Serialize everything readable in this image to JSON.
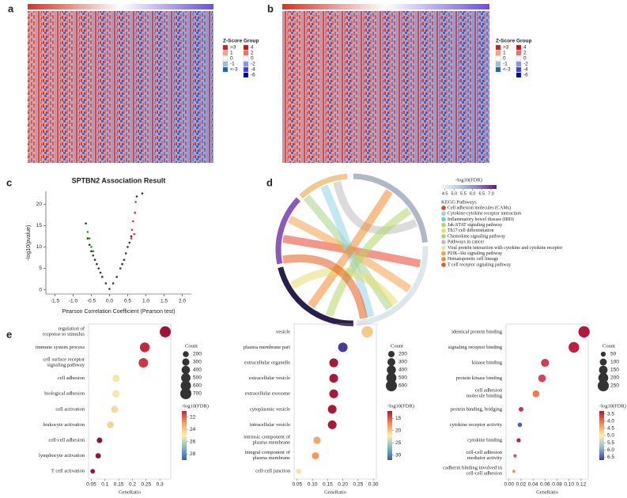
{
  "panel_labels": [
    "a",
    "b",
    "c",
    "d",
    "e"
  ],
  "chart_data": [
    {
      "type": "heatmap",
      "legends": [
        {
          "title": "Z-Score",
          "ticks": [
            {
              "value": 3,
              "label": ">3"
            },
            1,
            0,
            -1,
            {
              "value": -3,
              "label": "<-3"
            }
          ],
          "colors": [
            "#d7191c",
            "#f4a582",
            "#ffffff",
            "#92c5de",
            "#2166ac"
          ]
        },
        {
          "title": "Group",
          "ticks": [
            4,
            2,
            0,
            -2,
            -4,
            -6
          ],
          "colors": [
            "#d01010",
            "#f07070",
            "#ffffff",
            "#9090f0",
            "#4040e0",
            "#0000b0"
          ]
        }
      ]
    },
    {
      "type": "heatmap",
      "legends": [
        {
          "title": "Z-Score",
          "ticks": [
            {
              "value": 3,
              "label": ">3"
            },
            1,
            0,
            -1,
            {
              "value": -3,
              "label": "<-3"
            }
          ],
          "colors": [
            "#d7191c",
            "#f4a582",
            "#ffffff",
            "#92c5de",
            "#2166ac"
          ]
        },
        {
          "title": "Group",
          "ticks": [
            4,
            2,
            0,
            -2,
            -4,
            -6
          ],
          "colors": [
            "#d01010",
            "#f07070",
            "#ffffff",
            "#9090f0",
            "#4040e0",
            "#0000b0"
          ]
        }
      ]
    },
    {
      "type": "scatter",
      "title": "SPTBN2 Association Result",
      "xlabel": "Pearson Correlation Coefficient (Pearson test)",
      "ylabel": "-log10(pvalue)",
      "xlim": [
        -1.75,
        2.25
      ],
      "ylim": [
        -1,
        23
      ],
      "xticks": [
        {
          "value": -1.5,
          "label": "-1.5"
        },
        {
          "value": -1,
          "label": "-1.0"
        },
        {
          "value": -0.5,
          "label": "-0.5"
        },
        {
          "value": 0,
          "label": "0.0"
        },
        {
          "value": 0.5,
          "label": "0.5"
        },
        {
          "value": 1,
          "label": "1.0"
        },
        {
          "value": 1.5,
          "label": "1.5"
        },
        {
          "value": 2,
          "label": "2.0"
        }
      ],
      "yticks": [
        0,
        5,
        10,
        15,
        20
      ],
      "series": [
        {
          "color": "#333333",
          "x": [
            -0.6,
            -0.55,
            -0.5,
            -0.45,
            -0.4,
            -0.35,
            -0.3,
            -0.25,
            -0.2,
            -0.1,
            0,
            0.1,
            0.2,
            0.3,
            0.35,
            0.4,
            0.45,
            0.5,
            0.55,
            0.6,
            0.9,
            0.75,
            -0.65
          ],
          "y": [
            12,
            10.5,
            9,
            8,
            7,
            6,
            5,
            4,
            3,
            1.5,
            0.2,
            1.5,
            3,
            5,
            6,
            7,
            8.5,
            10,
            11,
            12.5,
            22.5,
            21.8,
            15.5
          ]
        },
        {
          "color": "#e03030",
          "x": [
            0.62,
            0.65,
            0.7,
            0.72,
            0.68,
            0.6
          ],
          "y": [
            14,
            16,
            18,
            20.5,
            13,
            12
          ]
        },
        {
          "color": "#2a9a2a",
          "x": [
            -0.55,
            -0.6,
            -0.5,
            -0.45
          ],
          "y": [
            12,
            13.5,
            10,
            9
          ]
        }
      ]
    },
    {
      "type": "chord",
      "colorbar": {
        "title": "-log10(FDR)",
        "ticks": [
          4.5,
          {
            "value": 5,
            "label": "5.0"
          },
          5.5,
          {
            "value": 6,
            "label": "6.0"
          },
          6.5,
          {
            "value": 7,
            "label": "7.0"
          }
        ],
        "lim": [
          4.3,
          7.3
        ],
        "colors": [
          "#f4f6f8",
          "#b8c8dc",
          "#8a7fb8",
          "#5a1f7a"
        ]
      },
      "legend_title": "KEGG Pathways",
      "categories": [
        "Cell adhesion molecules (CAMs)",
        "Cytokine-cytokine receptor interaction",
        "Inflammatory bowel disease (IBD)",
        "Jak-STAT signaling pathway",
        "Th17 cell differentiation",
        "Chemokine signaling pathway",
        "Pathways in cancer",
        "Viral protein interaction with cytokine and cytokine receptor",
        "PI3K-Akt signaling pathway",
        "Hematopoietic cell lineage",
        "T cell receptor signaling pathway"
      ],
      "colors": [
        "#e8412a",
        "#92d5e6",
        "#7fc8c8",
        "#b5d66b",
        "#e6dc6f",
        "#a9d18e",
        "#bdbdbd",
        "#f3e08a",
        "#f5a04a",
        "#f28a2e",
        "#e35d1c"
      ]
    },
    {
      "type": "dotplot",
      "xlabel": "GeneRatio",
      "xlim": [
        0.04,
        0.34
      ],
      "xticks": [
        0.05,
        0.1,
        0.15,
        0.2,
        0.25,
        0.3
      ],
      "categories": [
        "regulation of response to stimulus",
        "immune system process",
        "cell surface receptor signaling pathway",
        "cell adhesion",
        "biological adhesion",
        "cell activation",
        "leukocyte activation",
        "cell-cell adhesion",
        "lymphocyte activation",
        "T cell activation"
      ],
      "values": [
        0.32,
        0.245,
        0.24,
        0.14,
        0.14,
        0.135,
        0.12,
        0.08,
        0.075,
        0.055
      ],
      "sizes": [
        700,
        540,
        520,
        300,
        300,
        290,
        260,
        175,
        165,
        120
      ],
      "colors": [
        "#9c1538",
        "#c0283e",
        "#cc3448",
        "#f8e6a8",
        "#f8e6a8",
        "#f6dc9c",
        "#f4d494",
        "#8a1040",
        "#8e1444",
        "#901848"
      ],
      "size_legend": {
        "title": "Count",
        "values": [
          200,
          300,
          400,
          500,
          600,
          700
        ]
      },
      "colorbar": {
        "title": "-log10(FDR)",
        "ticks": [
          22,
          24,
          26,
          28
        ],
        "lim": [
          21,
          29
        ],
        "colors": [
          "#c0283e",
          "#f4a460",
          "#fdf1a8",
          "#7fb8d0",
          "#3b5fa8"
        ]
      }
    },
    {
      "type": "dotplot",
      "xlabel": "GeneRatio",
      "xlim": [
        0.04,
        0.31
      ],
      "xticks": [
        {
          "value": 0.05,
          "label": "0.05"
        },
        {
          "value": 0.1,
          "label": "0.10"
        },
        {
          "value": 0.15,
          "label": "0.15"
        },
        {
          "value": 0.2,
          "label": "0.20"
        },
        {
          "value": 0.25,
          "label": "0.25"
        },
        {
          "value": 0.3,
          "label": "0.30"
        }
      ],
      "categories": [
        "vesicle",
        "plasma membrane part",
        "extracellular organelle",
        "extracellular vesicle",
        "extracellular exosome",
        "cytoplasmic vesicle",
        "intracellular vesicle",
        "intrinsic component of plasma membrane",
        "integral component of plasma membrane",
        "cell-cell junction"
      ],
      "values": [
        0.28,
        0.2,
        0.17,
        0.17,
        0.17,
        0.165,
        0.165,
        0.115,
        0.11,
        0.055
      ],
      "sizes": [
        620,
        440,
        380,
        380,
        380,
        370,
        370,
        260,
        250,
        130
      ],
      "colors": [
        "#f5c98a",
        "#4a3a9a",
        "#a8183c",
        "#a8183c",
        "#a8183c",
        "#a8183c",
        "#a8183c",
        "#f3a86a",
        "#f09a5a",
        "#f7e2a6"
      ],
      "size_legend": {
        "title": "Count",
        "values": [
          200,
          300,
          400,
          500,
          600
        ]
      },
      "colorbar": {
        "title": "-log10(FDR)",
        "ticks": [
          15,
          20,
          25,
          30
        ],
        "lim": [
          12,
          32
        ],
        "colors": [
          "#a8183c",
          "#f08a50",
          "#fdf1a8",
          "#7fb8d0",
          "#3b5fa8"
        ]
      }
    },
    {
      "type": "dotplot",
      "xlabel": "GeneRatio",
      "xlim": [
        -0.005,
        0.132
      ],
      "xticks": [
        {
          "value": 0,
          "label": "0.00"
        },
        {
          "value": 0.02,
          "label": "0.02"
        },
        {
          "value": 0.04,
          "label": "0.04"
        },
        {
          "value": 0.06,
          "label": "0.06"
        },
        {
          "value": 0.08,
          "label": "0.08"
        },
        {
          "value": 0.1,
          "label": "0.10"
        },
        {
          "value": 0.12,
          "label": "0.12"
        }
      ],
      "categories": [
        "identical protein binding",
        "signaling receptor binding",
        "kinase binding",
        "protein kinase binding",
        "cell adhesion molecule binding",
        "protein binding, bridging",
        "cytokine receptor activity",
        "cytokine binding",
        "cell-cell adhesion mediator activity",
        "cadherin binding involved in cell-cell adhesion"
      ],
      "values": [
        0.125,
        0.108,
        0.06,
        0.055,
        0.045,
        0.02,
        0.018,
        0.016,
        0.01,
        0.008
      ],
      "sizes": [
        260,
        230,
        130,
        120,
        95,
        45,
        40,
        35,
        22,
        18
      ],
      "colors": [
        "#b0173a",
        "#c01f40",
        "#d03a55",
        "#d8435a",
        "#f07a50",
        "#d02e55",
        "#5060b0",
        "#b8204a",
        "#e05050",
        "#f08a60"
      ],
      "size_legend": {
        "title": "Count",
        "values": [
          50,
          100,
          150,
          200,
          250
        ]
      },
      "colorbar": {
        "title": "-log10(FDR)",
        "ticks": [
          3.5,
          {
            "value": 4,
            "label": "4.0"
          },
          4.5,
          {
            "value": 5,
            "label": "5.0"
          },
          5.5,
          {
            "value": 6,
            "label": "6.0"
          },
          6.5
        ],
        "lim": [
          3.3,
          6.7
        ],
        "colors": [
          "#b0173a",
          "#f08a50",
          "#fdf1a8",
          "#8fb8d8",
          "#3a3f98"
        ]
      }
    }
  ]
}
